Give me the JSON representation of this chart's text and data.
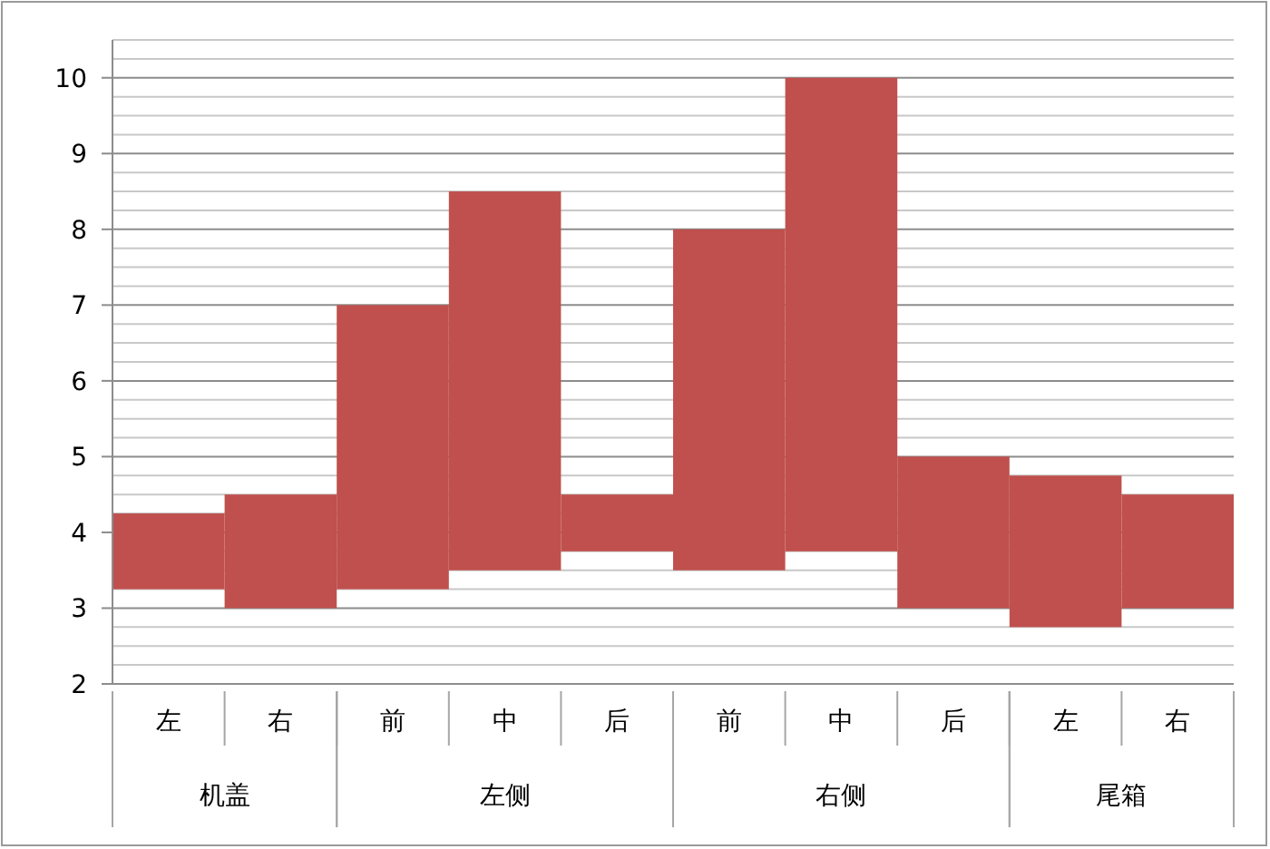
{
  "chart_data": {
    "type": "bar",
    "categories": [
      "左",
      "右",
      "前",
      "中",
      "后",
      "前",
      "中",
      "后",
      "左",
      "右"
    ],
    "base": [
      3.25,
      3,
      3.25,
      3.5,
      3.75,
      3.5,
      3.75,
      3,
      2.75,
      3
    ],
    "values": [
      1,
      1.5,
      3.75,
      5,
      0.75,
      4.5,
      6.25,
      2,
      2,
      1.5
    ],
    "color": "#c0504d",
    "ylim": [
      2,
      10.5
    ],
    "yticks": [
      2,
      3,
      4,
      5,
      6,
      7,
      8,
      9,
      10
    ],
    "grid": "y",
    "annotations": [
      "机盖",
      "左侧",
      "右侧",
      "尾箱"
    ]
  }
}
